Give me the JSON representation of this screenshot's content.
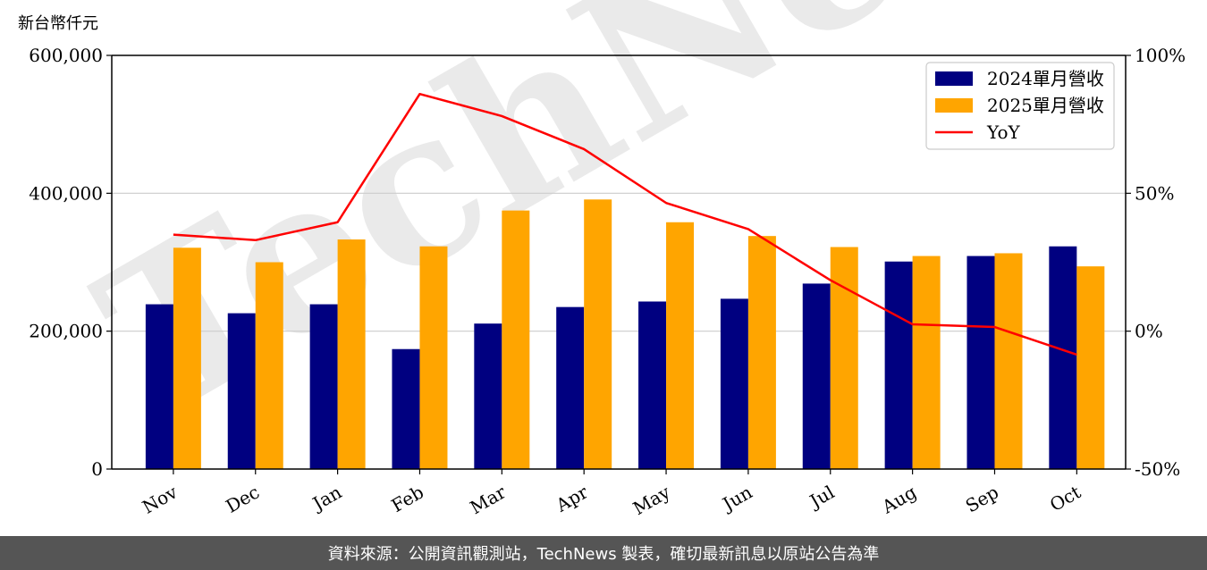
{
  "chart_data": {
    "type": "bar",
    "unit_label": "新台幣仟元",
    "categories": [
      "Nov",
      "Dec",
      "Jan",
      "Feb",
      "Mar",
      "Apr",
      "May",
      "Jun",
      "Jul",
      "Aug",
      "Sep",
      "Oct"
    ],
    "series": [
      {
        "name": "2024單月營收",
        "type": "bar",
        "axis": "left",
        "color": "#000080",
        "values": [
          239000,
          226000,
          239000,
          174000,
          211000,
          235000,
          243000,
          247000,
          269000,
          301000,
          309000,
          323000
        ]
      },
      {
        "name": "2025單月營收",
        "type": "bar",
        "axis": "left",
        "color": "#FFA500",
        "values": [
          321000,
          300000,
          333000,
          323000,
          375000,
          391000,
          358000,
          338000,
          322000,
          309000,
          313000,
          294000
        ]
      }
    ],
    "line": {
      "name": "YoY",
      "axis": "right",
      "color": "#FF0000",
      "unit": "%",
      "values": [
        35,
        33,
        39.5,
        86,
        78,
        66,
        46.5,
        37,
        18.5,
        2.5,
        1.5,
        -8.5
      ]
    },
    "ylim_left": [
      0,
      600000
    ],
    "ylim_right": [
      -50,
      100
    ],
    "yticks_left": [
      "0",
      "200,000",
      "400,000",
      "600,000"
    ],
    "yticks_right": [
      "-50%",
      "0%",
      "50%",
      "100%"
    ],
    "grid": true,
    "legend_position": "top-right",
    "watermark": "TechNews"
  },
  "footer": {
    "source": "資料來源：公開資訊觀測站，TechNews 製表，確切最新訊息以原站公告為準"
  }
}
